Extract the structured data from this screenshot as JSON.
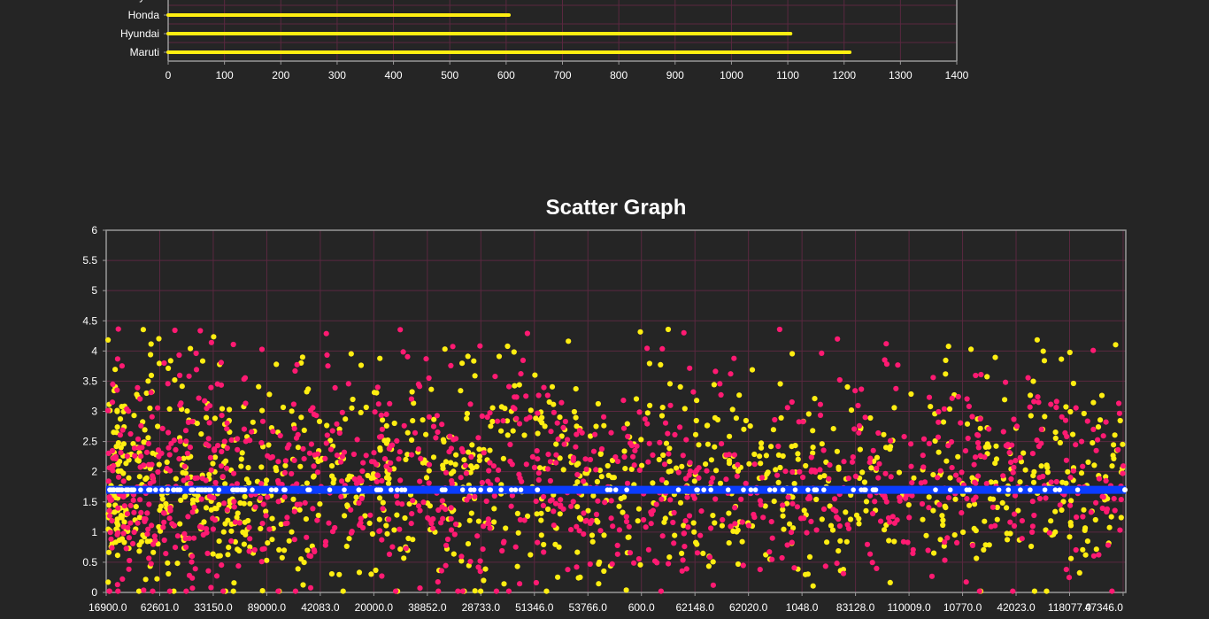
{
  "colors": {
    "background": "#252525",
    "grid": "#5a2840",
    "axis": "#9a9a9a",
    "bar": "#ffee11",
    "scatter_a": "#ffee11",
    "scatter_b": "#ff1a72",
    "line": "#0a3cff",
    "line_marker": "#ffffff"
  },
  "chart_data": [
    {
      "type": "bar",
      "orientation": "horizontal",
      "title": "",
      "categories": [
        "Toyota",
        "Honda",
        "Hyundai",
        "Maruti"
      ],
      "values": [
        null,
        605,
        1105,
        1210
      ],
      "xlim": [
        0,
        1400
      ],
      "x_ticks": [
        "0",
        "100",
        "200",
        "300",
        "400",
        "500",
        "600",
        "700",
        "800",
        "900",
        "1000",
        "1100",
        "1200",
        "1300",
        "1400"
      ],
      "grid": true,
      "note_cropped": "chart is cropped at top; Toyota bar not visible"
    },
    {
      "type": "scatter",
      "title": "Scatter Graph",
      "ylim": [
        0,
        6
      ],
      "y_ticks": [
        "0",
        "0.5",
        "1",
        "1.5",
        "2",
        "2.5",
        "3",
        "3.5",
        "4",
        "4.5",
        "5",
        "5.5",
        "6"
      ],
      "x_ticks": [
        "16900.0",
        "62601.0",
        "33150.0",
        "89000.0",
        "42083.0",
        "20000.0",
        "38852.0",
        "28733.0",
        "51346.0",
        "53766.0",
        "600.0",
        "62148.0",
        "62020.0",
        "1048.0",
        "83128.0",
        "110009.0",
        "10770.0",
        "42023.0",
        "118077.0",
        "47346.0"
      ],
      "grid": true,
      "series": [
        {
          "color_key": "scatter_a",
          "points": "approx. 1100 yellow points, y mostly between 0 and 4.7"
        },
        {
          "color_key": "scatter_b",
          "points": "approx. 1100 pink points, y mostly between 0 and 5.1"
        },
        {
          "color_key": "line",
          "constant_y": 1.7
        }
      ]
    }
  ]
}
